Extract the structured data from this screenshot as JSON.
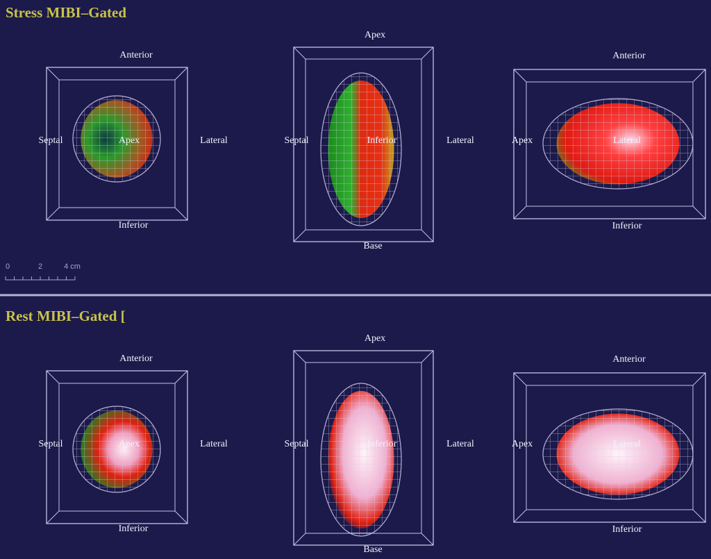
{
  "panels": [
    {
      "title": "Stress  MIBI–Gated",
      "views": [
        {
          "top": "Anterior",
          "left": "Septal",
          "center": "Apex",
          "right": "Lateral",
          "bottom": "Inferior"
        },
        {
          "top": "Apex",
          "left": "Septal",
          "center": "Inferior",
          "right": "Lateral",
          "bottom": "Base"
        },
        {
          "top": "Anterior",
          "left": "Apex",
          "center": "Lateral",
          "bottom": "Inferior"
        }
      ],
      "scale_bar": {
        "labels": [
          "0",
          "2",
          "4 cm"
        ]
      }
    },
    {
      "title": "Rest  MIBI–Gated [",
      "views": [
        {
          "top": "Anterior",
          "left": "Septal",
          "center": "Apex",
          "right": "Lateral",
          "bottom": "Inferior"
        },
        {
          "top": "Apex",
          "left": "Septal",
          "center": "Inferior",
          "right": "Lateral",
          "bottom": "Base"
        },
        {
          "top": "Anterior",
          "left": "Apex",
          "center": "Lateral",
          "bottom": "Inferior"
        }
      ]
    }
  ]
}
